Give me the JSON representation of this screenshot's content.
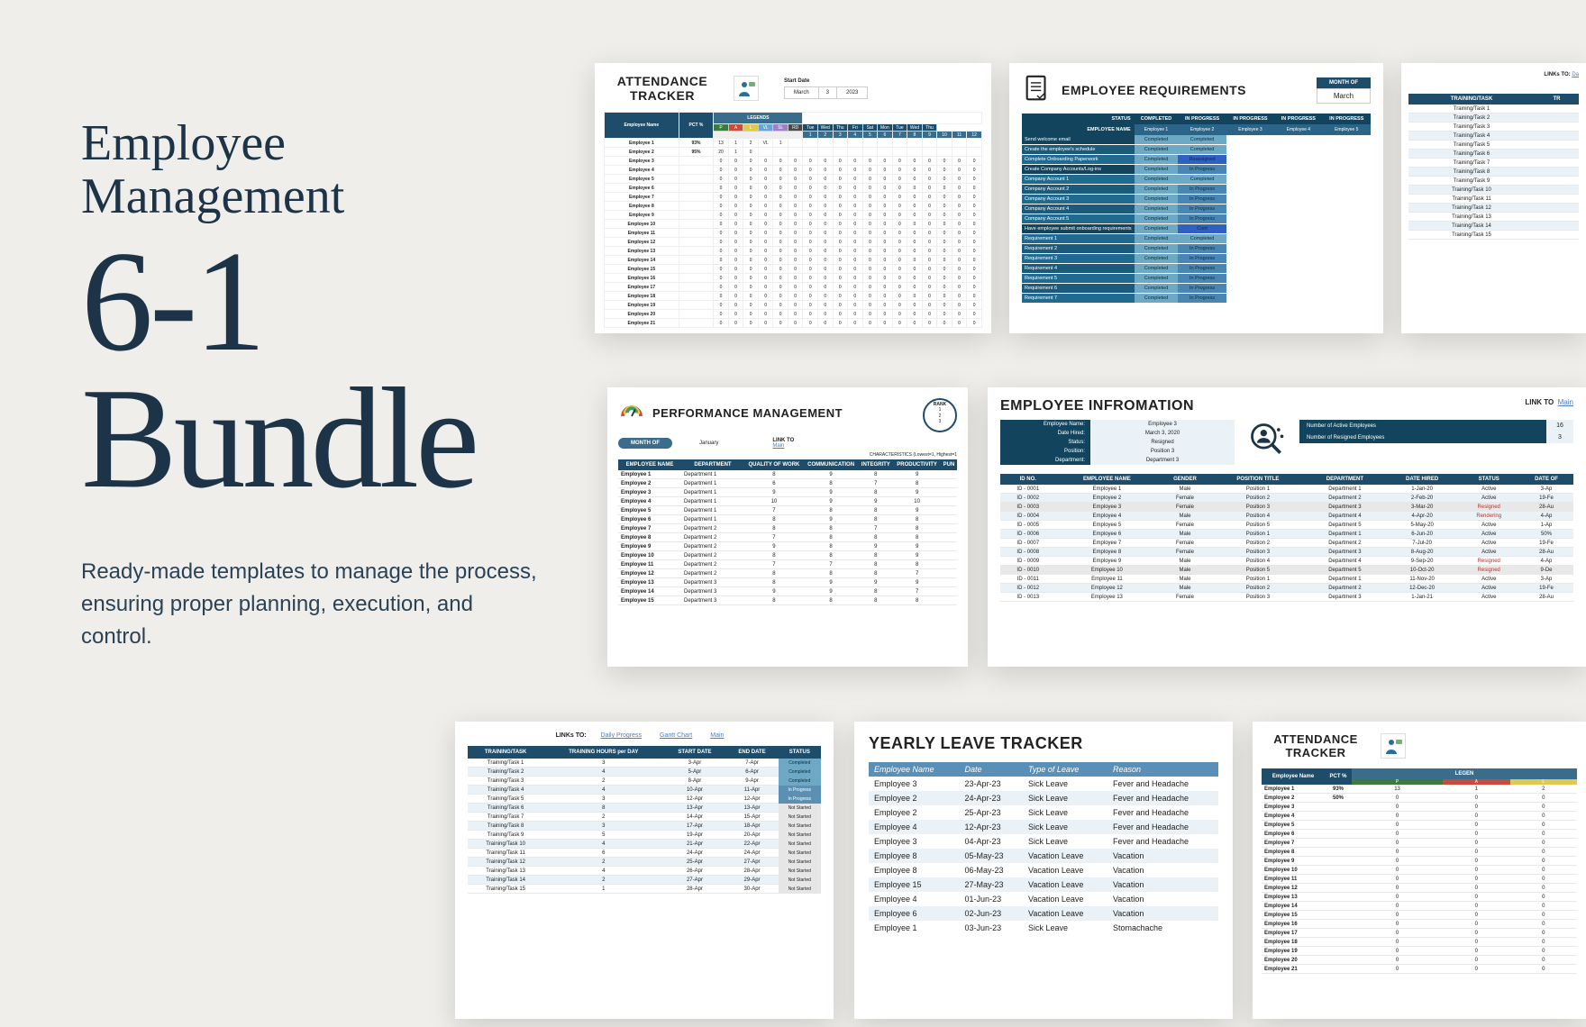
{
  "hero": {
    "title1": "Employee",
    "title2": "Management",
    "big1": "6-1",
    "big2": "Bundle",
    "sub": "Ready-made templates to manage the process, ensuring proper planning, execution, and control."
  },
  "colors": {
    "text": "#1d3448",
    "bg": "#efeeea",
    "header_dark": "#1d4d6b",
    "header_mid": "#3a6d8c",
    "header_teal": "#13445e",
    "row_alt": "#eaf2f7",
    "completed": "#6da9c4",
    "inprogress": "#5d8fb3",
    "notstarted": "#e6e6e6",
    "legend": {
      "P": "#3e7a3e",
      "A": "#c74d3a",
      "L": "#e0c94e",
      "VL": "#6aa3d8",
      "SL": "#9f80c4",
      "RD": "#4a4a4a"
    }
  },
  "attendance": {
    "title": "ATTENDANCE TRACKER",
    "start_label": "Start Date",
    "month": "March",
    "day": "3",
    "year": "2023",
    "legend_label": "LEGENDS",
    "legend": [
      "P",
      "A",
      "L",
      "VL",
      "SL",
      "RD"
    ],
    "days_hdr": [
      "Tue",
      "Wed",
      "Thu",
      "Fri",
      "Sat",
      "Mon",
      "Tue",
      "Wed",
      "Thu"
    ],
    "nums": [
      "1",
      "2",
      "3",
      "4",
      "5",
      "6",
      "7",
      "8",
      "9",
      "10",
      "11",
      "12"
    ],
    "col_emp": "Employee Name",
    "col_pct": "PCT %",
    "rows": [
      {
        "n": "Employee 1",
        "p": "93%",
        "g": [
          "13",
          "1",
          "2",
          "VL",
          "1"
        ]
      },
      {
        "n": "Employee 2",
        "p": "95%",
        "g": [
          "20",
          "1",
          "0"
        ]
      },
      {
        "n": "Employee 3",
        "p": ""
      },
      {
        "n": "Employee 4",
        "p": ""
      },
      {
        "n": "Employee 5",
        "p": ""
      },
      {
        "n": "Employee 6",
        "p": ""
      },
      {
        "n": "Employee 7",
        "p": ""
      },
      {
        "n": "Employee 8",
        "p": ""
      },
      {
        "n": "Employee 9",
        "p": ""
      },
      {
        "n": "Employee 10",
        "p": ""
      },
      {
        "n": "Employee 11",
        "p": ""
      },
      {
        "n": "Employee 12",
        "p": ""
      },
      {
        "n": "Employee 13",
        "p": ""
      },
      {
        "n": "Employee 14",
        "p": ""
      },
      {
        "n": "Employee 15",
        "p": ""
      },
      {
        "n": "Employee 16",
        "p": ""
      },
      {
        "n": "Employee 17",
        "p": ""
      },
      {
        "n": "Employee 18",
        "p": ""
      },
      {
        "n": "Employee 19",
        "p": ""
      },
      {
        "n": "Employee 20",
        "p": ""
      },
      {
        "n": "Employee 21",
        "p": ""
      }
    ]
  },
  "requirements": {
    "title": "EMPLOYEE REQUIREMENTS",
    "month_label": "MONTH OF",
    "month": "March",
    "status": "STATUS",
    "emp_name": "EMPLOYEE NAME",
    "cols": [
      "COMPLETED",
      "IN PROGRESS",
      "IN PROGRESS",
      "IN PROGRESS",
      "IN PROGRESS"
    ],
    "empcols": [
      "Employee 1",
      "Employee 2",
      "Employee 3",
      "Employee 4",
      "Employee 5"
    ],
    "rows": [
      {
        "t": "Send welcome email",
        "s": [
          "Completed",
          "Completed"
        ]
      },
      {
        "t": "Create the employee's schedule",
        "s": [
          "Completed",
          "Completed"
        ]
      },
      {
        "t": "Complete Onboarding Paperwork",
        "s": [
          "Completed",
          "Reassigned"
        ]
      },
      {
        "t": "Create Company Accounts/Log-ins",
        "s": [
          "Completed",
          "In Progress"
        ]
      },
      {
        "t": "Company Account 1",
        "s": [
          "Completed",
          "Completed"
        ]
      },
      {
        "t": "Company Account 2",
        "s": [
          "Completed",
          "In Progress"
        ]
      },
      {
        "t": "Company Account 3",
        "s": [
          "Completed",
          "In Progress"
        ]
      },
      {
        "t": "Company Account 4",
        "s": [
          "Completed",
          "In Progress"
        ]
      },
      {
        "t": "Company Account 5",
        "s": [
          "Completed",
          "In Progress"
        ]
      },
      {
        "t": "Have employee submit onboarding requirements",
        "s": [
          "Completed",
          "Cont"
        ]
      },
      {
        "t": "Requirement 1",
        "s": [
          "Completed",
          "Completed"
        ]
      },
      {
        "t": "Requirement 2",
        "s": [
          "Completed",
          "In Progress"
        ]
      },
      {
        "t": "Requirement 3",
        "s": [
          "Completed",
          "In Progress"
        ]
      },
      {
        "t": "Requirement 4",
        "s": [
          "Completed",
          "In Progress"
        ]
      },
      {
        "t": "Requirement 5",
        "s": [
          "Completed",
          "In Progress"
        ]
      },
      {
        "t": "Requirement 6",
        "s": [
          "Completed",
          "In Progress"
        ]
      },
      {
        "t": "Requirement 7",
        "s": [
          "Completed",
          "In Progress"
        ]
      }
    ]
  },
  "training_small": {
    "link_label": "LINKs TO:",
    "link": "Da",
    "col": "TRAINING/TASK",
    "col2": "TR",
    "rows": [
      "Training/Task 1",
      "Training/Task 2",
      "Training/Task 3",
      "Training/Task 4",
      "Training/Task 5",
      "Training/Task 6",
      "Training/Task 7",
      "Training/Task 8",
      "Training/Task 9",
      "Training/Task 10",
      "Training/Task 11",
      "Training/Task 12",
      "Training/Task 13",
      "Training/Task 14",
      "Training/Task 15"
    ]
  },
  "performance": {
    "title": "PERFORMANCE MANAGEMENT",
    "month_label": "MONTH OF",
    "month": "January",
    "link_label": "LINK TO",
    "link": "Main",
    "rank_label": "RANK",
    "ranks": [
      "1",
      "2",
      "3"
    ],
    "char_label": "CHARACTERISTICS (Lowest=1, Highest=1",
    "cols": [
      "EMPLOYEE NAME",
      "DEPARTMENT",
      "QUALITY OF WORK",
      "COMMUNICATION",
      "INTEGRITY",
      "PRODUCTIVITY",
      "PUN"
    ],
    "rows": [
      [
        "Employee 1",
        "Department 1",
        "8",
        "9",
        "8",
        "9",
        ""
      ],
      [
        "Employee 2",
        "Department 1",
        "6",
        "8",
        "7",
        "8",
        ""
      ],
      [
        "Employee 3",
        "Department 1",
        "9",
        "9",
        "8",
        "9",
        ""
      ],
      [
        "Employee 4",
        "Department 1",
        "10",
        "9",
        "9",
        "10",
        ""
      ],
      [
        "Employee 5",
        "Department 1",
        "7",
        "8",
        "8",
        "9",
        ""
      ],
      [
        "Employee 6",
        "Department 1",
        "8",
        "9",
        "8",
        "8",
        ""
      ],
      [
        "Employee 7",
        "Department 2",
        "8",
        "8",
        "7",
        "8",
        ""
      ],
      [
        "Employee 8",
        "Department 2",
        "7",
        "8",
        "8",
        "8",
        ""
      ],
      [
        "Employee 9",
        "Department 2",
        "9",
        "8",
        "9",
        "9",
        ""
      ],
      [
        "Employee 10",
        "Department 2",
        "8",
        "8",
        "8",
        "9",
        ""
      ],
      [
        "Employee 11",
        "Department 2",
        "7",
        "7",
        "8",
        "8",
        ""
      ],
      [
        "Employee 12",
        "Department 2",
        "8",
        "8",
        "8",
        "7",
        ""
      ],
      [
        "Employee 13",
        "Department 3",
        "8",
        "9",
        "9",
        "9",
        ""
      ],
      [
        "Employee 14",
        "Department 3",
        "9",
        "9",
        "8",
        "7",
        ""
      ],
      [
        "Employee 15",
        "Department 3",
        "8",
        "8",
        "8",
        "8",
        ""
      ]
    ]
  },
  "info": {
    "title": "EMPLOYEE INFROMATION",
    "link_label": "LINK TO",
    "link": "Main",
    "left_labels": [
      "Employee Name:",
      "Date Hired:",
      "Status:",
      "Position:",
      "Department:"
    ],
    "left_vals": [
      "Employee 3",
      "March 3, 2020",
      "Resigned",
      "Position 3",
      "Department 3"
    ],
    "right": [
      {
        "l": "Number of Active Employees",
        "v": "16"
      },
      {
        "l": "Number of Resigned Employees",
        "v": "3"
      }
    ],
    "cols": [
      "ID NO.",
      "EMPLOYEE NAME",
      "GENDER",
      "POSITION TITLE",
      "DEPARTMENT",
      "DATE HIRED",
      "STATUS",
      "DATE OF"
    ],
    "rows": [
      [
        "ID - 0001",
        "Employee 1",
        "Male",
        "Position 1",
        "Department 1",
        "1-Jan-20",
        "Active",
        "3-Ap"
      ],
      [
        "ID - 0002",
        "Employee 2",
        "Female",
        "Position 2",
        "Department 2",
        "2-Feb-20",
        "Active",
        "19-Fe"
      ],
      [
        "ID - 0003",
        "Employee 3",
        "Female",
        "Position 3",
        "Department 3",
        "3-Mar-20",
        "Resigned",
        "28-Au"
      ],
      [
        "ID - 0004",
        "Employee 4",
        "Male",
        "Position 4",
        "Department 4",
        "4-Apr-20",
        "Rendering",
        "4-Ap"
      ],
      [
        "ID - 0005",
        "Employee 5",
        "Female",
        "Position 5",
        "Department 5",
        "5-May-20",
        "Active",
        "1-Ap"
      ],
      [
        "ID - 0006",
        "Employee 6",
        "Male",
        "Position 1",
        "Department 1",
        "6-Jun-20",
        "Active",
        "50%"
      ],
      [
        "ID - 0007",
        "Employee 7",
        "Female",
        "Position 2",
        "Department 2",
        "7-Jul-20",
        "Active",
        "19-Fe"
      ],
      [
        "ID - 0008",
        "Employee 8",
        "Female",
        "Position 3",
        "Department 3",
        "8-Aug-20",
        "Active",
        "28-Au"
      ],
      [
        "ID - 0009",
        "Employee 9",
        "Male",
        "Position 4",
        "Department 4",
        "9-Sep-20",
        "Resigned",
        "4-Ap"
      ],
      [
        "ID - 0010",
        "Employee 10",
        "Male",
        "Position 5",
        "Department 5",
        "10-Oct-20",
        "Resigned",
        "9-De"
      ],
      [
        "ID - 0011",
        "Employee 11",
        "Male",
        "Position 1",
        "Department 1",
        "11-Nov-20",
        "Active",
        "3-Ap"
      ],
      [
        "ID - 0012",
        "Employee 12",
        "Male",
        "Position 2",
        "Department 2",
        "12-Dec-20",
        "Active",
        "19-Fe"
      ],
      [
        "ID - 0013",
        "Employee 13",
        "Female",
        "Position 3",
        "Department 3",
        "1-Jan-21",
        "Active",
        "28-Au"
      ]
    ]
  },
  "training": {
    "link_label": "LINKs TO:",
    "links": [
      "Daily Progress",
      "Gantt Chart",
      "Main"
    ],
    "cols": [
      "TRAINING/TASK",
      "TRAINING HOURS per DAY",
      "START DATE",
      "END DATE",
      "STATUS"
    ],
    "rows": [
      [
        "Training/Task 1",
        "3",
        "3-Apr",
        "7-Apr",
        "Completed"
      ],
      [
        "Training/Task 2",
        "4",
        "5-Apr",
        "6-Apr",
        "Completed"
      ],
      [
        "Training/Task 3",
        "2",
        "8-Apr",
        "9-Apr",
        "Completed"
      ],
      [
        "Training/Task 4",
        "4",
        "10-Apr",
        "11-Apr",
        "In Progress"
      ],
      [
        "Training/Task 5",
        "3",
        "12-Apr",
        "12-Apr",
        "In Progress"
      ],
      [
        "Training/Task 6",
        "8",
        "13-Apr",
        "13-Apr",
        "Not Started"
      ],
      [
        "Training/Task 7",
        "2",
        "14-Apr",
        "15-Apr",
        "Not Started"
      ],
      [
        "Training/Task 8",
        "3",
        "17-Apr",
        "18-Apr",
        "Not Started"
      ],
      [
        "Training/Task 9",
        "5",
        "19-Apr",
        "20-Apr",
        "Not Started"
      ],
      [
        "Training/Task 10",
        "4",
        "21-Apr",
        "22-Apr",
        "Not Started"
      ],
      [
        "Training/Task 11",
        "6",
        "24-Apr",
        "24-Apr",
        "Not Started"
      ],
      [
        "Training/Task 12",
        "2",
        "25-Apr",
        "27-Apr",
        "Not Started"
      ],
      [
        "Training/Task 13",
        "4",
        "26-Apr",
        "28-Apr",
        "Not Started"
      ],
      [
        "Training/Task 14",
        "2",
        "27-Apr",
        "29-Apr",
        "Not Started"
      ],
      [
        "Training/Task 15",
        "1",
        "28-Apr",
        "30-Apr",
        "Not Started"
      ]
    ]
  },
  "leave": {
    "title": "YEARLY LEAVE TRACKER",
    "cols": [
      "Employee Name",
      "Date",
      "Type of Leave",
      "Reason"
    ],
    "rows": [
      [
        "Employee 3",
        "23-Apr-23",
        "Sick Leave",
        "Fever and Headache"
      ],
      [
        "Employee 2",
        "24-Apr-23",
        "Sick Leave",
        "Fever and Headache"
      ],
      [
        "Employee 2",
        "25-Apr-23",
        "Sick Leave",
        "Fever and Headache"
      ],
      [
        "Employee 4",
        "12-Apr-23",
        "Sick Leave",
        "Fever and Headache"
      ],
      [
        "Employee 3",
        "04-Apr-23",
        "Sick Leave",
        "Fever and Headache"
      ],
      [
        "Employee 8",
        "05-May-23",
        "Vacation Leave",
        "Vacation"
      ],
      [
        "Employee 8",
        "06-May-23",
        "Vacation Leave",
        "Vacation"
      ],
      [
        "Employee 15",
        "27-May-23",
        "Vacation Leave",
        "Vacation"
      ],
      [
        "Employee 4",
        "01-Jun-23",
        "Vacation Leave",
        "Vacation"
      ],
      [
        "Employee 6",
        "02-Jun-23",
        "Vacation Leave",
        "Vacation"
      ],
      [
        "Employee 1",
        "03-Jun-23",
        "Sick Leave",
        "Stomachache"
      ]
    ]
  },
  "attendance2": {
    "title": "ATTENDANCE TRACKER",
    "col_emp": "Employee Name",
    "col_pct": "PCT %",
    "legend_label": "LEGEN",
    "legend": [
      "P",
      "A",
      "L"
    ],
    "rows": [
      {
        "n": "Employee 1",
        "p": "93%",
        "g": [
          "13",
          "1",
          "2"
        ]
      },
      {
        "n": "Employee 2",
        "p": "50%",
        "g": [
          "0",
          "0",
          "0"
        ]
      },
      {
        "n": "Employee 3",
        "p": ""
      },
      {
        "n": "Employee 4",
        "p": ""
      },
      {
        "n": "Employee 5",
        "p": ""
      },
      {
        "n": "Employee 6",
        "p": ""
      },
      {
        "n": "Employee 7",
        "p": ""
      },
      {
        "n": "Employee 8",
        "p": ""
      },
      {
        "n": "Employee 9",
        "p": ""
      },
      {
        "n": "Employee 10",
        "p": ""
      },
      {
        "n": "Employee 11",
        "p": ""
      },
      {
        "n": "Employee 12",
        "p": ""
      },
      {
        "n": "Employee 13",
        "p": ""
      },
      {
        "n": "Employee 14",
        "p": ""
      },
      {
        "n": "Employee 15",
        "p": ""
      },
      {
        "n": "Employee 16",
        "p": ""
      },
      {
        "n": "Employee 17",
        "p": ""
      },
      {
        "n": "Employee 18",
        "p": ""
      },
      {
        "n": "Employee 19",
        "p": ""
      },
      {
        "n": "Employee 20",
        "p": ""
      },
      {
        "n": "Employee 21",
        "p": ""
      }
    ]
  }
}
